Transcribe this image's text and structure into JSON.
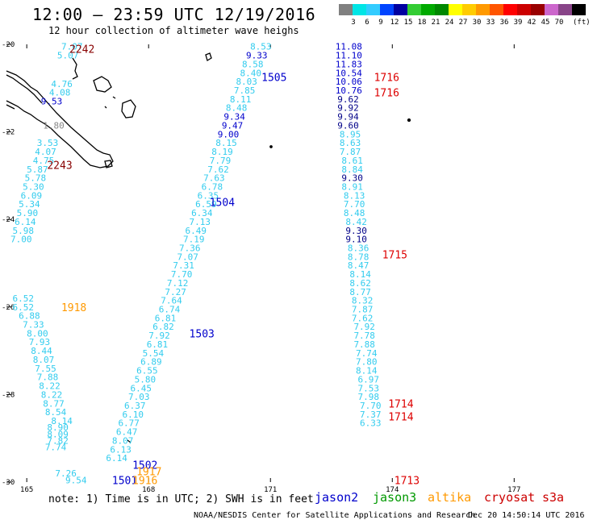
{
  "title": "12:00 — 23:59 UTC 12/19/2016",
  "subtitle": "12 hour collection of altimeter wave heighs",
  "legend": {
    "colors": [
      "#808080",
      "#00e5e5",
      "#33ccff",
      "#0044ff",
      "#0000a0",
      "#33cc33",
      "#00aa00",
      "#008800",
      "#ffff00",
      "#ffcc00",
      "#ff9900",
      "#ff5500",
      "#ff0000",
      "#cc0000",
      "#990000",
      "#cc66cc",
      "#884488",
      "#000000"
    ],
    "labels": [
      "3",
      "6",
      "9",
      "12",
      "15",
      "18",
      "21",
      "24",
      "27",
      "30",
      "33",
      "36",
      "39",
      "42",
      "45",
      "70"
    ],
    "unit": "(ft)"
  },
  "axes": {
    "lon_ticks": [
      "165",
      "168",
      "171",
      "174",
      "177"
    ],
    "lat_ticks": [
      "-20",
      "-22",
      "-24",
      "-26",
      "-28",
      "-30"
    ]
  },
  "note": "note:  1) Time is in UTC;  2) SWH is in feet",
  "satellites": [
    {
      "name": "jason2",
      "color": "#0000cc"
    },
    {
      "name": "jason3",
      "color": "#009900"
    },
    {
      "name": "altika",
      "color": "#ff9900"
    },
    {
      "name": "cryosat",
      "color": "#cc0000"
    },
    {
      "name": "s3a",
      "color": "#cc0000"
    }
  ],
  "credit": "NOAA/NESDIS Center for Satellite Applications and Research",
  "timestamp": "Dec 20 14:50:14 UTC 2016",
  "colors": {
    "cyan": "#33ccee",
    "blue": "#0000cc",
    "darkblue": "#000088",
    "orange": "#ff9900",
    "red": "#dd0000",
    "darkred": "#880000",
    "gray": "#888888"
  },
  "times": [
    {
      "t": "2242",
      "lon": 166.05,
      "lat": -20.1,
      "c": "darkred"
    },
    {
      "t": "2243",
      "lon": 165.5,
      "lat": -22.75,
      "c": "darkred"
    },
    {
      "t": "1505",
      "lon": 170.78,
      "lat": -20.75,
      "c": "blue"
    },
    {
      "t": "1504",
      "lon": 169.5,
      "lat": -23.6,
      "c": "blue"
    },
    {
      "t": "1503",
      "lon": 169.0,
      "lat": -26.6,
      "c": "blue"
    },
    {
      "t": "1502",
      "lon": 167.6,
      "lat": -29.6,
      "c": "blue"
    },
    {
      "t": "1501",
      "lon": 167.1,
      "lat": -29.95,
      "c": "blue"
    },
    {
      "t": "1716",
      "lon": 173.55,
      "lat": -20.75,
      "c": "red"
    },
    {
      "t": "1716",
      "lon": 173.55,
      "lat": -21.1,
      "c": "red"
    },
    {
      "t": "1715",
      "lon": 173.75,
      "lat": -24.8,
      "c": "red"
    },
    {
      "t": "1714",
      "lon": 173.9,
      "lat": -28.2,
      "c": "red"
    },
    {
      "t": "1714",
      "lon": 173.9,
      "lat": -28.5,
      "c": "red"
    },
    {
      "t": "1713",
      "lon": 174.05,
      "lat": -29.95,
      "c": "red"
    },
    {
      "t": "1918",
      "lon": 165.85,
      "lat": -26.0,
      "c": "orange"
    },
    {
      "t": "1917",
      "lon": 167.7,
      "lat": -29.75,
      "c": "orange"
    },
    {
      "t": "1916",
      "lon": 167.6,
      "lat": -29.95,
      "c": "orange"
    }
  ],
  "swh": [
    {
      "v": "7.07",
      "lon": 165.85,
      "lat": -20.05,
      "c": "cyan"
    },
    {
      "v": "5.07",
      "lon": 165.75,
      "lat": -20.25,
      "c": "cyan"
    },
    {
      "v": "4.76",
      "lon": 165.6,
      "lat": -20.9,
      "c": "cyan"
    },
    {
      "v": "4.08",
      "lon": 165.55,
      "lat": -21.1,
      "c": "cyan"
    },
    {
      "v": "9.53",
      "lon": 165.35,
      "lat": -21.3,
      "c": "blue"
    },
    {
      "v": "1.80",
      "lon": 165.4,
      "lat": -21.85,
      "c": "gray"
    },
    {
      "v": "3.53",
      "lon": 165.25,
      "lat": -22.25,
      "c": "cyan"
    },
    {
      "v": "4.07",
      "lon": 165.2,
      "lat": -22.45,
      "c": "cyan"
    },
    {
      "v": "4.75",
      "lon": 165.15,
      "lat": -22.65,
      "c": "cyan"
    },
    {
      "v": "5.87",
      "lon": 165.0,
      "lat": -22.85,
      "c": "cyan"
    },
    {
      "v": "5.78",
      "lon": 164.95,
      "lat": -23.05,
      "c": "cyan"
    },
    {
      "v": "5.30",
      "lon": 164.9,
      "lat": -23.25,
      "c": "cyan"
    },
    {
      "v": "6.09",
      "lon": 164.85,
      "lat": -23.45,
      "c": "cyan"
    },
    {
      "v": "5.34",
      "lon": 164.8,
      "lat": -23.65,
      "c": "cyan"
    },
    {
      "v": "5.90",
      "lon": 164.75,
      "lat": -23.85,
      "c": "cyan"
    },
    {
      "v": "6.14",
      "lon": 164.7,
      "lat": -24.05,
      "c": "cyan"
    },
    {
      "v": "5.98",
      "lon": 164.65,
      "lat": -24.25,
      "c": "cyan"
    },
    {
      "v": "7.00",
      "lon": 164.6,
      "lat": -24.45,
      "c": "cyan"
    },
    {
      "v": "6.52",
      "lon": 164.65,
      "lat": -25.8,
      "c": "cyan"
    },
    {
      "v": "6.52",
      "lon": 164.65,
      "lat": -26.0,
      "c": "cyan"
    },
    {
      "v": "6.88",
      "lon": 164.8,
      "lat": -26.2,
      "c": "cyan"
    },
    {
      "v": "7.33",
      "lon": 164.9,
      "lat": -26.4,
      "c": "cyan"
    },
    {
      "v": "8.00",
      "lon": 165.0,
      "lat": -26.6,
      "c": "cyan"
    },
    {
      "v": "7.93",
      "lon": 165.05,
      "lat": -26.8,
      "c": "cyan"
    },
    {
      "v": "8.44",
      "lon": 165.1,
      "lat": -27.0,
      "c": "cyan"
    },
    {
      "v": "8.07",
      "lon": 165.15,
      "lat": -27.2,
      "c": "cyan"
    },
    {
      "v": "7.55",
      "lon": 165.2,
      "lat": -27.4,
      "c": "cyan"
    },
    {
      "v": "7.88",
      "lon": 165.25,
      "lat": -27.6,
      "c": "cyan"
    },
    {
      "v": "8.22",
      "lon": 165.3,
      "lat": -27.8,
      "c": "cyan"
    },
    {
      "v": "8.22",
      "lon": 165.35,
      "lat": -28.0,
      "c": "cyan"
    },
    {
      "v": "8.77",
      "lon": 165.4,
      "lat": -28.2,
      "c": "cyan"
    },
    {
      "v": "8.54",
      "lon": 165.45,
      "lat": -28.4,
      "c": "cyan"
    },
    {
      "v": "8.14",
      "lon": 165.6,
      "lat": -28.6,
      "c": "cyan"
    },
    {
      "v": "8.90",
      "lon": 165.5,
      "lat": -28.75,
      "c": "cyan"
    },
    {
      "v": "8.09",
      "lon": 165.5,
      "lat": -28.9,
      "c": "cyan"
    },
    {
      "v": "7.82",
      "lon": 165.5,
      "lat": -29.05,
      "c": "cyan"
    },
    {
      "v": "7.74",
      "lon": 165.45,
      "lat": -29.2,
      "c": "cyan"
    },
    {
      "v": "7.26",
      "lon": 165.7,
      "lat": -29.8,
      "c": "cyan"
    },
    {
      "v": "8.53",
      "lon": 170.5,
      "lat": -20.05,
      "c": "cyan"
    },
    {
      "v": "9.33",
      "lon": 170.4,
      "lat": -20.25,
      "c": "blue"
    },
    {
      "v": "8.58",
      "lon": 170.3,
      "lat": -20.45,
      "c": "cyan"
    },
    {
      "v": "8.40",
      "lon": 170.25,
      "lat": -20.65,
      "c": "cyan"
    },
    {
      "v": "8.03",
      "lon": 170.15,
      "lat": -20.85,
      "c": "cyan"
    },
    {
      "v": "7.85",
      "lon": 170.1,
      "lat": -21.05,
      "c": "cyan"
    },
    {
      "v": "8.11",
      "lon": 170.0,
      "lat": -21.25,
      "c": "cyan"
    },
    {
      "v": "8.48",
      "lon": 169.9,
      "lat": -21.45,
      "c": "cyan"
    },
    {
      "v": "9.34",
      "lon": 169.85,
      "lat": -21.65,
      "c": "blue"
    },
    {
      "v": "9.47",
      "lon": 169.8,
      "lat": -21.85,
      "c": "blue"
    },
    {
      "v": "9.00",
      "lon": 169.7,
      "lat": -22.05,
      "c": "blue"
    },
    {
      "v": "8.15",
      "lon": 169.65,
      "lat": -22.25,
      "c": "cyan"
    },
    {
      "v": "8.19",
      "lon": 169.55,
      "lat": -22.45,
      "c": "cyan"
    },
    {
      "v": "7.79",
      "lon": 169.5,
      "lat": -22.65,
      "c": "cyan"
    },
    {
      "v": "7.62",
      "lon": 169.45,
      "lat": -22.85,
      "c": "cyan"
    },
    {
      "v": "7.63",
      "lon": 169.35,
      "lat": -23.05,
      "c": "cyan"
    },
    {
      "v": "6.78",
      "lon": 169.3,
      "lat": -23.25,
      "c": "cyan"
    },
    {
      "v": "6.35",
      "lon": 169.2,
      "lat": -23.45,
      "c": "cyan"
    },
    {
      "v": "6.59",
      "lon": 169.15,
      "lat": -23.65,
      "c": "cyan"
    },
    {
      "v": "6.34",
      "lon": 169.05,
      "lat": -23.85,
      "c": "cyan"
    },
    {
      "v": "7.13",
      "lon": 169.0,
      "lat": -24.05,
      "c": "cyan"
    },
    {
      "v": "6.49",
      "lon": 168.9,
      "lat": -24.25,
      "c": "cyan"
    },
    {
      "v": "7.19",
      "lon": 168.85,
      "lat": -24.45,
      "c": "cyan"
    },
    {
      "v": "7.36",
      "lon": 168.75,
      "lat": -24.65,
      "c": "cyan"
    },
    {
      "v": "7.07",
      "lon": 168.7,
      "lat": -24.85,
      "c": "cyan"
    },
    {
      "v": "7.31",
      "lon": 168.6,
      "lat": -25.05,
      "c": "cyan"
    },
    {
      "v": "7.70",
      "lon": 168.55,
      "lat": -25.25,
      "c": "cyan"
    },
    {
      "v": "7.12",
      "lon": 168.45,
      "lat": -25.45,
      "c": "cyan"
    },
    {
      "v": "7.27",
      "lon": 168.4,
      "lat": -25.65,
      "c": "cyan"
    },
    {
      "v": "7.64",
      "lon": 168.3,
      "lat": -25.85,
      "c": "cyan"
    },
    {
      "v": "6.74",
      "lon": 168.25,
      "lat": -26.05,
      "c": "cyan"
    },
    {
      "v": "6.81",
      "lon": 168.15,
      "lat": -26.25,
      "c": "cyan"
    },
    {
      "v": "6.82",
      "lon": 168.1,
      "lat": -26.45,
      "c": "cyan"
    },
    {
      "v": "7.92",
      "lon": 168.0,
      "lat": -26.65,
      "c": "cyan"
    },
    {
      "v": "6.81",
      "lon": 167.95,
      "lat": -26.85,
      "c": "cyan"
    },
    {
      "v": "5.54",
      "lon": 167.85,
      "lat": -27.05,
      "c": "cyan"
    },
    {
      "v": "6.89",
      "lon": 167.8,
      "lat": -27.25,
      "c": "cyan"
    },
    {
      "v": "6.55",
      "lon": 167.7,
      "lat": -27.45,
      "c": "cyan"
    },
    {
      "v": "5.80",
      "lon": 167.65,
      "lat": -27.65,
      "c": "cyan"
    },
    {
      "v": "6.45",
      "lon": 167.55,
      "lat": -27.85,
      "c": "cyan"
    },
    {
      "v": "7.03",
      "lon": 167.5,
      "lat": -28.05,
      "c": "cyan"
    },
    {
      "v": "6.37",
      "lon": 167.4,
      "lat": -28.25,
      "c": "cyan"
    },
    {
      "v": "6.10",
      "lon": 167.35,
      "lat": -28.45,
      "c": "cyan"
    },
    {
      "v": "6.77",
      "lon": 167.25,
      "lat": -28.65,
      "c": "cyan"
    },
    {
      "v": "6.47",
      "lon": 167.2,
      "lat": -28.85,
      "c": "cyan"
    },
    {
      "v": "8.07",
      "lon": 167.1,
      "lat": -29.05,
      "c": "cyan"
    },
    {
      "v": "6.13",
      "lon": 167.05,
      "lat": -29.25,
      "c": "cyan"
    },
    {
      "v": "6.14",
      "lon": 166.95,
      "lat": -29.45,
      "c": "cyan"
    },
    {
      "v": "9.54",
      "lon": 165.95,
      "lat": -29.95,
      "c": "cyan"
    },
    {
      "v": "11.08",
      "lon": 172.6,
      "lat": -20.05,
      "c": "blue"
    },
    {
      "v": "11.10",
      "lon": 172.6,
      "lat": -20.25,
      "c": "blue"
    },
    {
      "v": "11.83",
      "lon": 172.6,
      "lat": -20.45,
      "c": "blue"
    },
    {
      "v": "10.54",
      "lon": 172.6,
      "lat": -20.65,
      "c": "blue"
    },
    {
      "v": "10.06",
      "lon": 172.6,
      "lat": -20.85,
      "c": "blue"
    },
    {
      "v": "10.76",
      "lon": 172.6,
      "lat": -21.05,
      "c": "blue"
    },
    {
      "v": "9.62",
      "lon": 172.65,
      "lat": -21.25,
      "c": "darkblue"
    },
    {
      "v": "9.92",
      "lon": 172.65,
      "lat": -21.45,
      "c": "darkblue"
    },
    {
      "v": "9.94",
      "lon": 172.65,
      "lat": -21.65,
      "c": "darkblue"
    },
    {
      "v": "9.60",
      "lon": 172.65,
      "lat": -21.85,
      "c": "darkblue"
    },
    {
      "v": "8.95",
      "lon": 172.7,
      "lat": -22.05,
      "c": "cyan"
    },
    {
      "v": "8.63",
      "lon": 172.7,
      "lat": -22.25,
      "c": "cyan"
    },
    {
      "v": "7.87",
      "lon": 172.7,
      "lat": -22.45,
      "c": "cyan"
    },
    {
      "v": "8.61",
      "lon": 172.75,
      "lat": -22.65,
      "c": "cyan"
    },
    {
      "v": "8.84",
      "lon": 172.75,
      "lat": -22.85,
      "c": "cyan"
    },
    {
      "v": "9.30",
      "lon": 172.75,
      "lat": -23.05,
      "c": "darkblue"
    },
    {
      "v": "8.91",
      "lon": 172.75,
      "lat": -23.25,
      "c": "cyan"
    },
    {
      "v": "8.13",
      "lon": 172.8,
      "lat": -23.45,
      "c": "cyan"
    },
    {
      "v": "7.70",
      "lon": 172.8,
      "lat": -23.65,
      "c": "cyan"
    },
    {
      "v": "8.48",
      "lon": 172.8,
      "lat": -23.85,
      "c": "cyan"
    },
    {
      "v": "8.42",
      "lon": 172.85,
      "lat": -24.05,
      "c": "cyan"
    },
    {
      "v": "9.30",
      "lon": 172.85,
      "lat": -24.25,
      "c": "darkblue"
    },
    {
      "v": "9.10",
      "lon": 172.85,
      "lat": -24.45,
      "c": "darkblue"
    },
    {
      "v": "8.36",
      "lon": 172.9,
      "lat": -24.65,
      "c": "cyan"
    },
    {
      "v": "8.78",
      "lon": 172.9,
      "lat": -24.85,
      "c": "cyan"
    },
    {
      "v": "8.47",
      "lon": 172.9,
      "lat": -25.05,
      "c": "cyan"
    },
    {
      "v": "8.14",
      "lon": 172.95,
      "lat": -25.25,
      "c": "cyan"
    },
    {
      "v": "8.62",
      "lon": 172.95,
      "lat": -25.45,
      "c": "cyan"
    },
    {
      "v": "8.77",
      "lon": 172.95,
      "lat": -25.65,
      "c": "cyan"
    },
    {
      "v": "8.32",
      "lon": 173.0,
      "lat": -25.85,
      "c": "cyan"
    },
    {
      "v": "7.87",
      "lon": 173.0,
      "lat": -26.05,
      "c": "cyan"
    },
    {
      "v": "7.62",
      "lon": 173.0,
      "lat": -26.25,
      "c": "cyan"
    },
    {
      "v": "7.92",
      "lon": 173.05,
      "lat": -26.45,
      "c": "cyan"
    },
    {
      "v": "7.78",
      "lon": 173.05,
      "lat": -26.65,
      "c": "cyan"
    },
    {
      "v": "7.88",
      "lon": 173.05,
      "lat": -26.85,
      "c": "cyan"
    },
    {
      "v": "7.74",
      "lon": 173.1,
      "lat": -27.05,
      "c": "cyan"
    },
    {
      "v": "7.80",
      "lon": 173.1,
      "lat": -27.25,
      "c": "cyan"
    },
    {
      "v": "8.14",
      "lon": 173.1,
      "lat": -27.45,
      "c": "cyan"
    },
    {
      "v": "6.97",
      "lon": 173.15,
      "lat": -27.65,
      "c": "cyan"
    },
    {
      "v": "7.53",
      "lon": 173.15,
      "lat": -27.85,
      "c": "cyan"
    },
    {
      "v": "7.98",
      "lon": 173.15,
      "lat": -28.05,
      "c": "cyan"
    },
    {
      "v": "7.70",
      "lon": 173.2,
      "lat": -28.25,
      "c": "cyan"
    },
    {
      "v": "7.37",
      "lon": 173.2,
      "lat": -28.45,
      "c": "cyan"
    },
    {
      "v": "6.33",
      "lon": 173.2,
      "lat": -28.65,
      "c": "cyan"
    }
  ]
}
